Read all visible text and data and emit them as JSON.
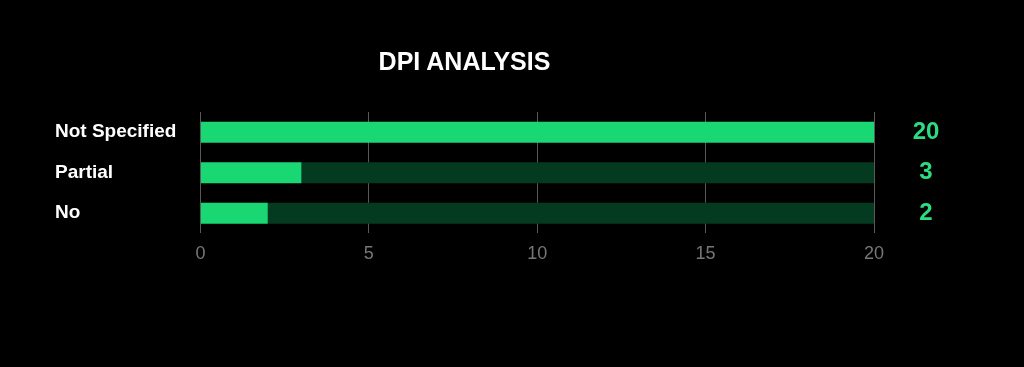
{
  "chart_data": {
    "type": "bar",
    "orientation": "horizontal",
    "title": "DPI ANALYSIS",
    "categories": [
      "Not Specified",
      "Partial",
      "No"
    ],
    "series": [
      {
        "color": "#19d873",
        "values": [
          20,
          3,
          2
        ],
        "value_labels": [
          "20",
          "3",
          "2"
        ]
      },
      {
        "color": "#043a20",
        "values": [
          0,
          17,
          18
        ]
      }
    ],
    "stacked": true,
    "xlim": [
      0,
      20
    ],
    "xticks": [
      0,
      5,
      10,
      15,
      20
    ],
    "grid": "x",
    "legend": false
  }
}
